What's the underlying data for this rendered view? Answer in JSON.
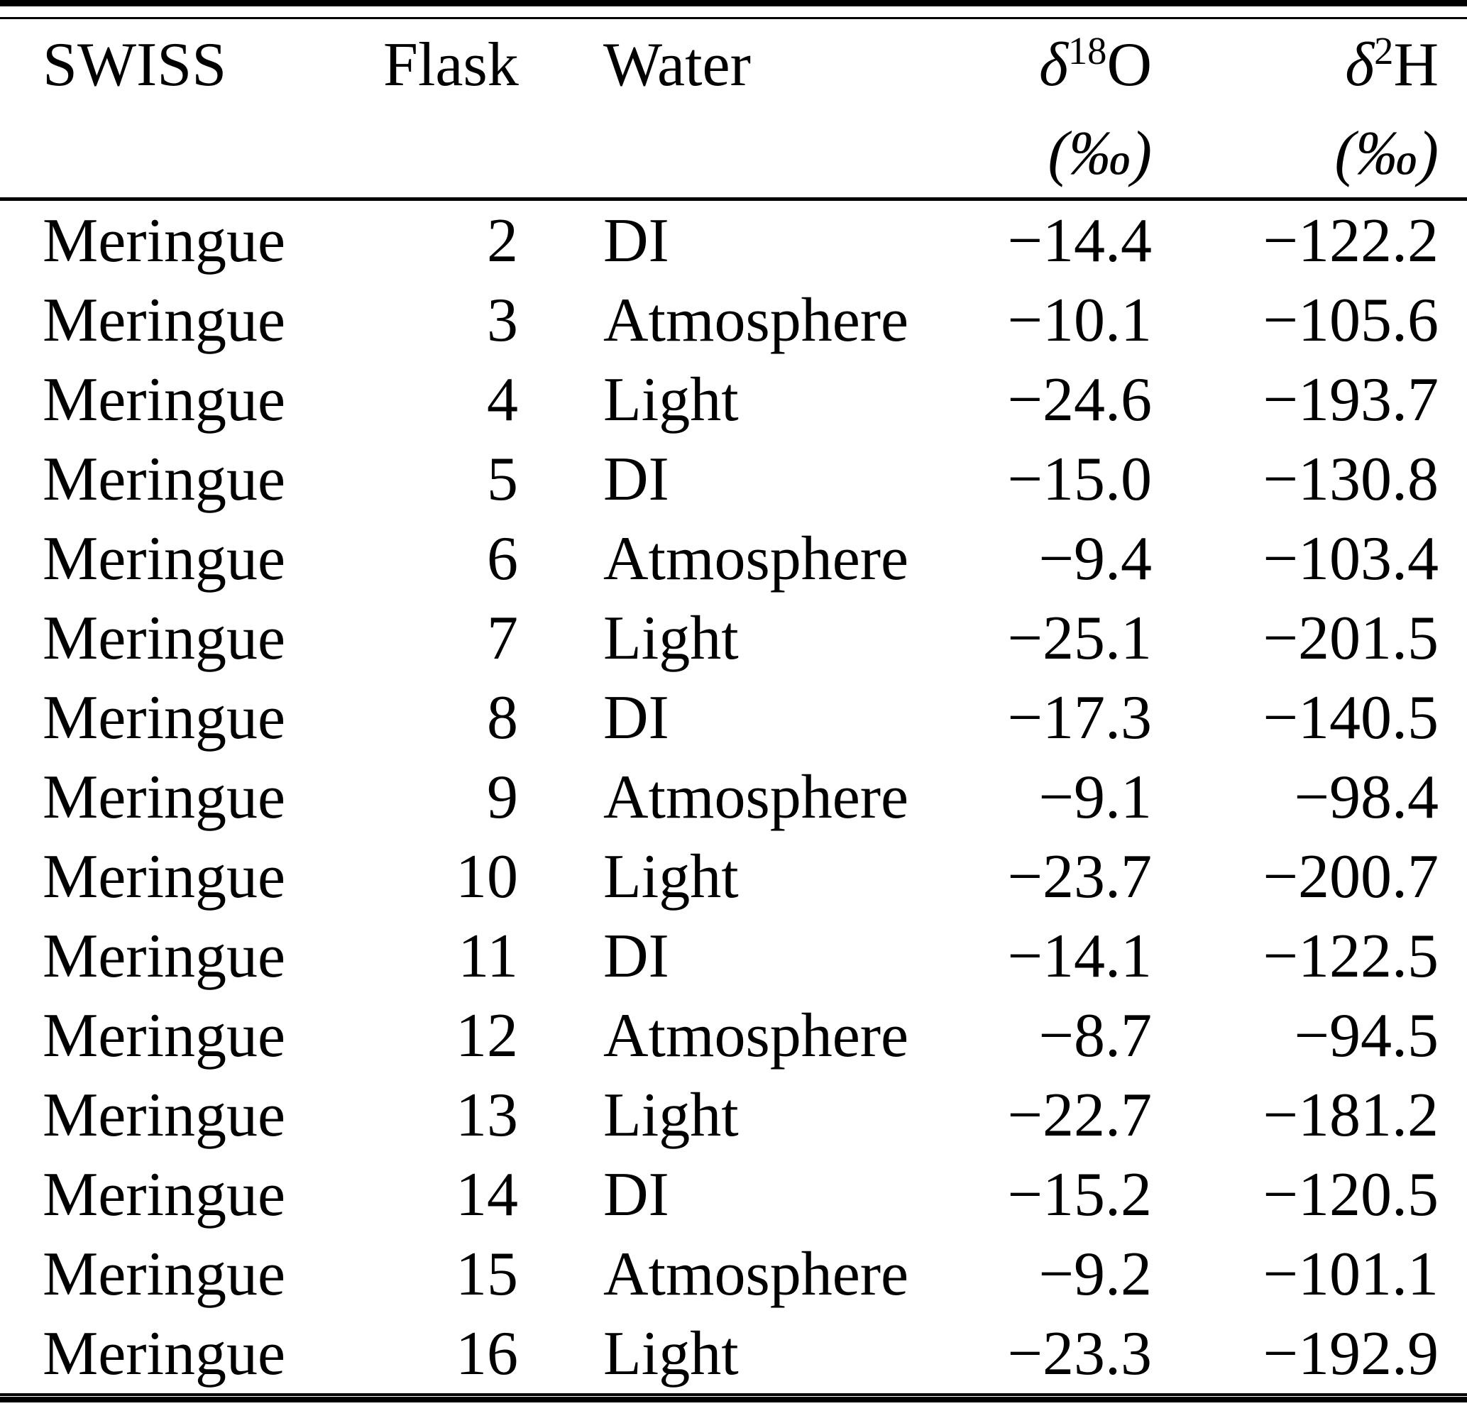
{
  "header": {
    "sample": "SWISS",
    "flask": "Flask",
    "water": "Water",
    "d18o": {
      "delta": "δ",
      "sup": "18",
      "element": "O",
      "units": "(‰)"
    },
    "d2h": {
      "delta": "δ",
      "sup": "2",
      "element": "H",
      "units": "(‰)"
    }
  },
  "rows": [
    {
      "sample": "Meringue",
      "flask": "2",
      "water": "DI",
      "d18O": "−14.4",
      "d2H": "−122.2"
    },
    {
      "sample": "Meringue",
      "flask": "3",
      "water": "Atmosphere",
      "d18O": "−10.1",
      "d2H": "−105.6"
    },
    {
      "sample": "Meringue",
      "flask": "4",
      "water": "Light",
      "d18O": "−24.6",
      "d2H": "−193.7"
    },
    {
      "sample": "Meringue",
      "flask": "5",
      "water": "DI",
      "d18O": "−15.0",
      "d2H": "−130.8"
    },
    {
      "sample": "Meringue",
      "flask": "6",
      "water": "Atmosphere",
      "d18O": "−9.4",
      "d2H": "−103.4"
    },
    {
      "sample": "Meringue",
      "flask": "7",
      "water": "Light",
      "d18O": "−25.1",
      "d2H": "−201.5"
    },
    {
      "sample": "Meringue",
      "flask": "8",
      "water": "DI",
      "d18O": "−17.3",
      "d2H": "−140.5"
    },
    {
      "sample": "Meringue",
      "flask": "9",
      "water": "Atmosphere",
      "d18O": "−9.1",
      "d2H": "−98.4"
    },
    {
      "sample": "Meringue",
      "flask": "10",
      "water": "Light",
      "d18O": "−23.7",
      "d2H": "−200.7"
    },
    {
      "sample": "Meringue",
      "flask": "11",
      "water": "DI",
      "d18O": "−14.1",
      "d2H": "−122.5"
    },
    {
      "sample": "Meringue",
      "flask": "12",
      "water": "Atmosphere",
      "d18O": "−8.7",
      "d2H": "−94.5"
    },
    {
      "sample": "Meringue",
      "flask": "13",
      "water": "Light",
      "d18O": "−22.7",
      "d2H": "−181.2"
    },
    {
      "sample": "Meringue",
      "flask": "14",
      "water": "DI",
      "d18O": "−15.2",
      "d2H": "−120.5"
    },
    {
      "sample": "Meringue",
      "flask": "15",
      "water": "Atmosphere",
      "d18O": "−9.2",
      "d2H": "−101.1"
    },
    {
      "sample": "Meringue",
      "flask": "16",
      "water": "Light",
      "d18O": "−23.3",
      "d2H": "−192.9"
    }
  ],
  "colors": {
    "text": "#000000",
    "background": "#ffffff",
    "rule": "#000000"
  },
  "chart_data": {
    "type": "table",
    "columns": [
      "SWISS",
      "Flask",
      "Water",
      "δ18O (‰)",
      "δ2H (‰)"
    ],
    "rows": [
      [
        "Meringue",
        2,
        "DI",
        -14.4,
        -122.2
      ],
      [
        "Meringue",
        3,
        "Atmosphere",
        -10.1,
        -105.6
      ],
      [
        "Meringue",
        4,
        "Light",
        -24.6,
        -193.7
      ],
      [
        "Meringue",
        5,
        "DI",
        -15.0,
        -130.8
      ],
      [
        "Meringue",
        6,
        "Atmosphere",
        -9.4,
        -103.4
      ],
      [
        "Meringue",
        7,
        "Light",
        -25.1,
        -201.5
      ],
      [
        "Meringue",
        8,
        "DI",
        -17.3,
        -140.5
      ],
      [
        "Meringue",
        9,
        "Atmosphere",
        -9.1,
        -98.4
      ],
      [
        "Meringue",
        10,
        "Light",
        -23.7,
        -200.7
      ],
      [
        "Meringue",
        11,
        "DI",
        -14.1,
        -122.5
      ],
      [
        "Meringue",
        12,
        "Atmosphere",
        -8.7,
        -94.5
      ],
      [
        "Meringue",
        13,
        "Light",
        -22.7,
        -181.2
      ],
      [
        "Meringue",
        14,
        "DI",
        -15.2,
        -120.5
      ],
      [
        "Meringue",
        15,
        "Atmosphere",
        -9.2,
        -101.1
      ],
      [
        "Meringue",
        16,
        "Light",
        -23.3,
        -192.9
      ]
    ]
  }
}
